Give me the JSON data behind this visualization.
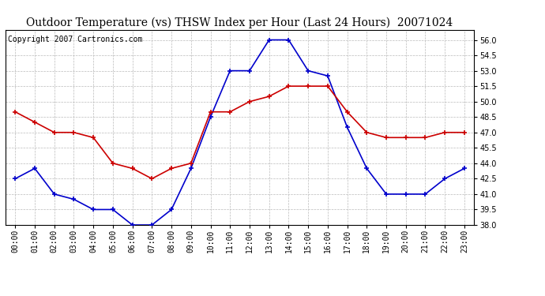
{
  "title": "Outdoor Temperature (vs) THSW Index per Hour (Last 24 Hours)  20071024",
  "copyright_text": "Copyright 2007 Cartronics.com",
  "hours": [
    0,
    1,
    2,
    3,
    4,
    5,
    6,
    7,
    8,
    9,
    10,
    11,
    12,
    13,
    14,
    15,
    16,
    17,
    18,
    19,
    20,
    21,
    22,
    23
  ],
  "hour_labels": [
    "00:00",
    "01:00",
    "02:00",
    "03:00",
    "04:00",
    "05:00",
    "06:00",
    "07:00",
    "08:00",
    "09:00",
    "10:00",
    "11:00",
    "12:00",
    "13:00",
    "14:00",
    "15:00",
    "16:00",
    "17:00",
    "18:00",
    "19:00",
    "20:00",
    "21:00",
    "22:00",
    "23:00"
  ],
  "temp_red": [
    49.0,
    48.0,
    47.0,
    47.0,
    46.5,
    44.0,
    43.5,
    42.5,
    43.5,
    44.0,
    49.0,
    49.0,
    50.0,
    50.5,
    51.5,
    51.5,
    51.5,
    49.0,
    47.0,
    46.5,
    46.5,
    46.5,
    47.0,
    47.0
  ],
  "thsw_blue": [
    42.5,
    43.5,
    41.0,
    40.5,
    39.5,
    39.5,
    38.0,
    38.0,
    39.5,
    43.5,
    48.5,
    53.0,
    53.0,
    56.0,
    56.0,
    53.0,
    52.5,
    47.5,
    43.5,
    41.0,
    41.0,
    41.0,
    42.5,
    43.5
  ],
  "ylim": [
    38.0,
    57.0
  ],
  "yticks": [
    38.0,
    39.5,
    41.0,
    42.5,
    44.0,
    45.5,
    47.0,
    48.5,
    50.0,
    51.5,
    53.0,
    54.5,
    56.0
  ],
  "red_color": "#cc0000",
  "blue_color": "#0000cc",
  "grid_color": "#bbbbbb",
  "bg_color": "#ffffff",
  "title_fontsize": 10,
  "tick_fontsize": 7,
  "copyright_fontsize": 7
}
